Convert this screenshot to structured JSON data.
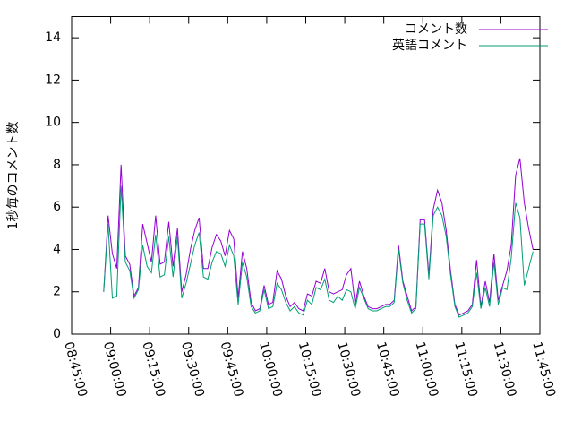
{
  "chart_data": {
    "type": "line",
    "ylabel": "1秒毎のコメント数",
    "x": [
      "08:57:20",
      "08:59:00",
      "09:00:40",
      "09:02:20",
      "09:04:00",
      "09:05:40",
      "09:07:20",
      "09:09:00",
      "09:10:40",
      "09:12:20",
      "09:14:00",
      "09:15:40",
      "09:17:20",
      "09:19:00",
      "09:20:40",
      "09:22:20",
      "09:24:00",
      "09:25:40",
      "09:27:20",
      "09:29:00",
      "09:30:40",
      "09:32:20",
      "09:34:00",
      "09:35:40",
      "09:37:20",
      "09:39:00",
      "09:40:40",
      "09:42:20",
      "09:44:00",
      "09:45:40",
      "09:47:20",
      "09:49:00",
      "09:50:40",
      "09:52:20",
      "09:54:00",
      "09:55:40",
      "09:57:20",
      "09:59:00",
      "10:00:40",
      "10:02:20",
      "10:04:00",
      "10:05:40",
      "10:07:20",
      "10:09:00",
      "10:10:40",
      "10:12:20",
      "10:14:00",
      "10:15:40",
      "10:17:20",
      "10:19:00",
      "10:20:40",
      "10:22:20",
      "10:24:00",
      "10:25:40",
      "10:27:20",
      "10:29:00",
      "10:30:40",
      "10:32:20",
      "10:34:00",
      "10:35:40",
      "10:37:20",
      "10:39:00",
      "10:40:40",
      "10:42:20",
      "10:44:00",
      "10:45:40",
      "10:47:20",
      "10:49:00",
      "10:50:40",
      "10:52:20",
      "10:54:00",
      "10:55:40",
      "10:57:20",
      "10:59:00",
      "11:00:40",
      "11:02:20",
      "11:04:00",
      "11:05:40",
      "11:07:20",
      "11:09:00",
      "11:10:40",
      "11:12:20",
      "11:14:00",
      "11:15:40",
      "11:17:20",
      "11:19:00",
      "11:20:40",
      "11:22:20",
      "11:24:00",
      "11:25:40",
      "11:27:20",
      "11:29:00",
      "11:30:40",
      "11:32:20",
      "11:34:00",
      "11:35:40",
      "11:37:20",
      "11:39:00",
      "11:40:40",
      "11:42:20"
    ],
    "series": [
      {
        "name": "コメント数",
        "color": "#9400d3",
        "values": [
          2.0,
          5.6,
          3.8,
          3.1,
          8.0,
          3.7,
          3.3,
          1.8,
          2.2,
          5.2,
          4.3,
          3.4,
          5.6,
          3.3,
          3.4,
          5.3,
          3.2,
          5.0,
          2.0,
          2.8,
          4.0,
          4.9,
          5.5,
          3.1,
          3.1,
          4.1,
          4.7,
          4.4,
          3.7,
          4.9,
          4.5,
          1.7,
          3.9,
          3.1,
          1.5,
          1.1,
          1.2,
          2.3,
          1.4,
          1.5,
          3.0,
          2.6,
          1.8,
          1.3,
          1.5,
          1.2,
          1.1,
          1.9,
          1.8,
          2.5,
          2.4,
          3.1,
          2.0,
          1.9,
          2.0,
          2.1,
          2.8,
          3.1,
          1.4,
          2.5,
          1.8,
          1.3,
          1.2,
          1.2,
          1.3,
          1.4,
          1.4,
          1.6,
          4.2,
          2.5,
          1.8,
          1.1,
          1.3,
          5.4,
          5.4,
          2.8,
          5.9,
          6.8,
          6.2,
          4.9,
          3.0,
          1.4,
          0.9,
          1.0,
          1.1,
          1.4,
          3.5,
          1.3,
          2.5,
          1.5,
          3.8,
          1.6,
          2.3,
          3.0,
          4.2,
          7.5,
          8.3,
          6.2,
          5.0,
          4.0
        ]
      },
      {
        "name": "英語コメント",
        "color": "#009e73",
        "values": [
          2.0,
          5.2,
          1.7,
          1.8,
          7.0,
          3.4,
          3.0,
          1.7,
          2.1,
          4.2,
          3.2,
          2.9,
          4.7,
          2.7,
          2.8,
          4.6,
          2.7,
          4.6,
          1.7,
          2.4,
          3.3,
          4.2,
          4.8,
          2.7,
          2.6,
          3.4,
          3.9,
          3.8,
          3.2,
          4.2,
          3.7,
          1.4,
          3.4,
          2.7,
          1.3,
          1.0,
          1.1,
          2.1,
          1.2,
          1.3,
          2.4,
          2.1,
          1.5,
          1.1,
          1.3,
          1.0,
          0.9,
          1.6,
          1.4,
          2.2,
          2.1,
          2.6,
          1.6,
          1.5,
          1.8,
          1.6,
          2.1,
          2.0,
          1.2,
          2.2,
          1.7,
          1.2,
          1.1,
          1.1,
          1.2,
          1.3,
          1.3,
          1.5,
          4.0,
          2.4,
          1.6,
          1.0,
          1.2,
          5.2,
          5.2,
          2.6,
          5.6,
          6.0,
          5.6,
          4.6,
          2.8,
          1.3,
          0.8,
          0.9,
          1.0,
          1.3,
          2.9,
          1.2,
          2.2,
          1.3,
          3.4,
          1.4,
          2.2,
          2.1,
          3.6,
          6.2,
          5.5,
          2.3,
          3.1,
          3.9
        ]
      }
    ],
    "xlim": [
      "08:45:00",
      "11:45:00"
    ],
    "xticks": [
      "08:45:00",
      "09:00:00",
      "09:15:00",
      "09:30:00",
      "09:45:00",
      "10:00:00",
      "10:15:00",
      "10:30:00",
      "10:45:00",
      "11:00:00",
      "11:15:00",
      "11:30:00",
      "11:45:00"
    ],
    "ylim": [
      0,
      15
    ],
    "yticks": [
      0,
      2,
      4,
      6,
      8,
      10,
      12,
      14
    ],
    "grid": false,
    "legend": "upper right"
  }
}
